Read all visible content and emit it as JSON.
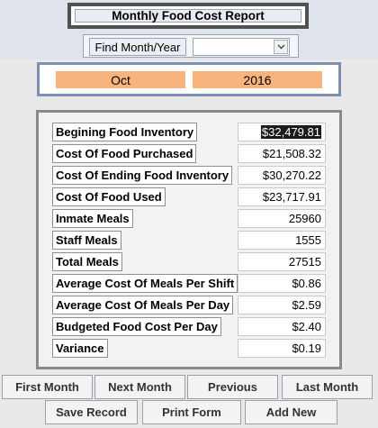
{
  "header": {
    "title": "Monthly Food Cost Report",
    "find_label": "Find Month/Year",
    "find_value": ""
  },
  "period": {
    "month": "Oct",
    "year": "2016"
  },
  "report": {
    "rows": [
      {
        "label": "Begining Food Inventory",
        "value": "$32,479.81"
      },
      {
        "label": "Cost Of Food Purchased",
        "value": "$21,508.32"
      },
      {
        "label": "Cost Of Ending Food Inventory",
        "value": "$30,270.22"
      },
      {
        "label": "Cost Of Food Used",
        "value": "$23,717.91"
      },
      {
        "label": "Inmate Meals",
        "value": "25960"
      },
      {
        "label": "Staff Meals",
        "value": "1555"
      },
      {
        "label": "Total Meals",
        "value": "27515"
      },
      {
        "label": "Average Cost Of Meals Per Shift",
        "value": "$0.86"
      },
      {
        "label": "Average Cost Of Meals Per Day",
        "value": "$2.59"
      },
      {
        "label": "Budgeted Food Cost Per Day",
        "value": "$2.40"
      },
      {
        "label": "Variance",
        "value": "$0.19"
      }
    ]
  },
  "buttons": {
    "first_month": "First Month",
    "next_month": "Next Month",
    "previous": "Previous",
    "last_month": "Last Month",
    "save_record": "Save Record",
    "print_form": "Print Form",
    "add_new": "Add New"
  },
  "icons": {
    "combo_arrow": "chevron-down-icon"
  },
  "colors": {
    "period_fill": "#f8b47c",
    "period_border": "#7d90b4"
  }
}
